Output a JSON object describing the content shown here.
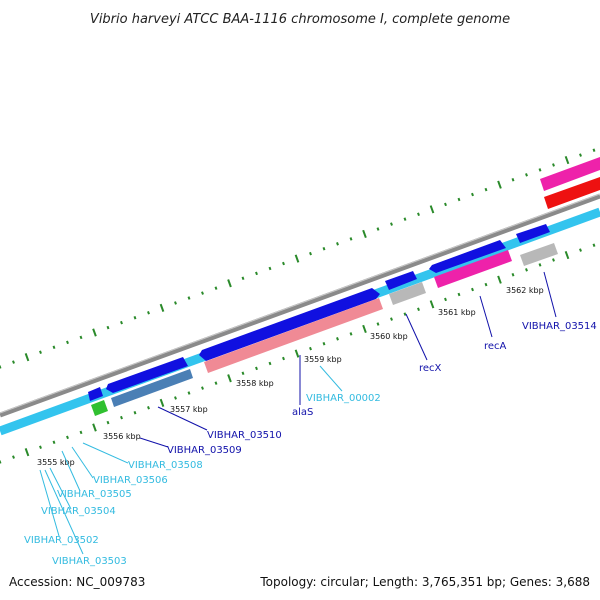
{
  "title": "Vibrio harveyi ATCC BAA-1116 chromosome I, complete genome",
  "footer": {
    "accession": "Accession: NC_009783",
    "summary": "Topology: circular; Length: 3,765,351 bp; Genes: 3,688"
  },
  "colors": {
    "backbone": "#808080",
    "forward_cds": "#1010e0",
    "reverse_cds": "#4a7fb5",
    "cyan_track": "#33c4ee",
    "rrna_pink": "#f080a0",
    "magenta_gene": "#ee22aa",
    "red_gene": "#ee1111",
    "gray_gene": "#b8b8b8",
    "green_gene": "#30c030",
    "tick_green": "#2a8a2a",
    "label_cyan": "#33bbe0",
    "label_blue": "#1111aa"
  },
  "tick_labels": [
    "3555 kbp",
    "3556 kbp",
    "3557 kbp",
    "3558 kbp",
    "3559 kbp",
    "3560 kbp",
    "3561 kbp",
    "3562 kbp"
  ],
  "gene_labels": {
    "vibhar_03514": "VIBHAR_03514",
    "reca": "recA",
    "recx": "recX",
    "vibhar_00002": "VIBHAR_00002",
    "alas": "alaS",
    "vibhar_03510": "VIBHAR_03510",
    "vibhar_03509": "VIBHAR_03509",
    "vibhar_03508": "VIBHAR_03508",
    "vibhar_03506": "VIBHAR_03506",
    "vibhar_03505": "VIBHAR_03505",
    "vibhar_03504": "VIBHAR_03504",
    "vibhar_03502": "VIBHAR_03502",
    "vibhar_03503": "VIBHAR_03503"
  }
}
